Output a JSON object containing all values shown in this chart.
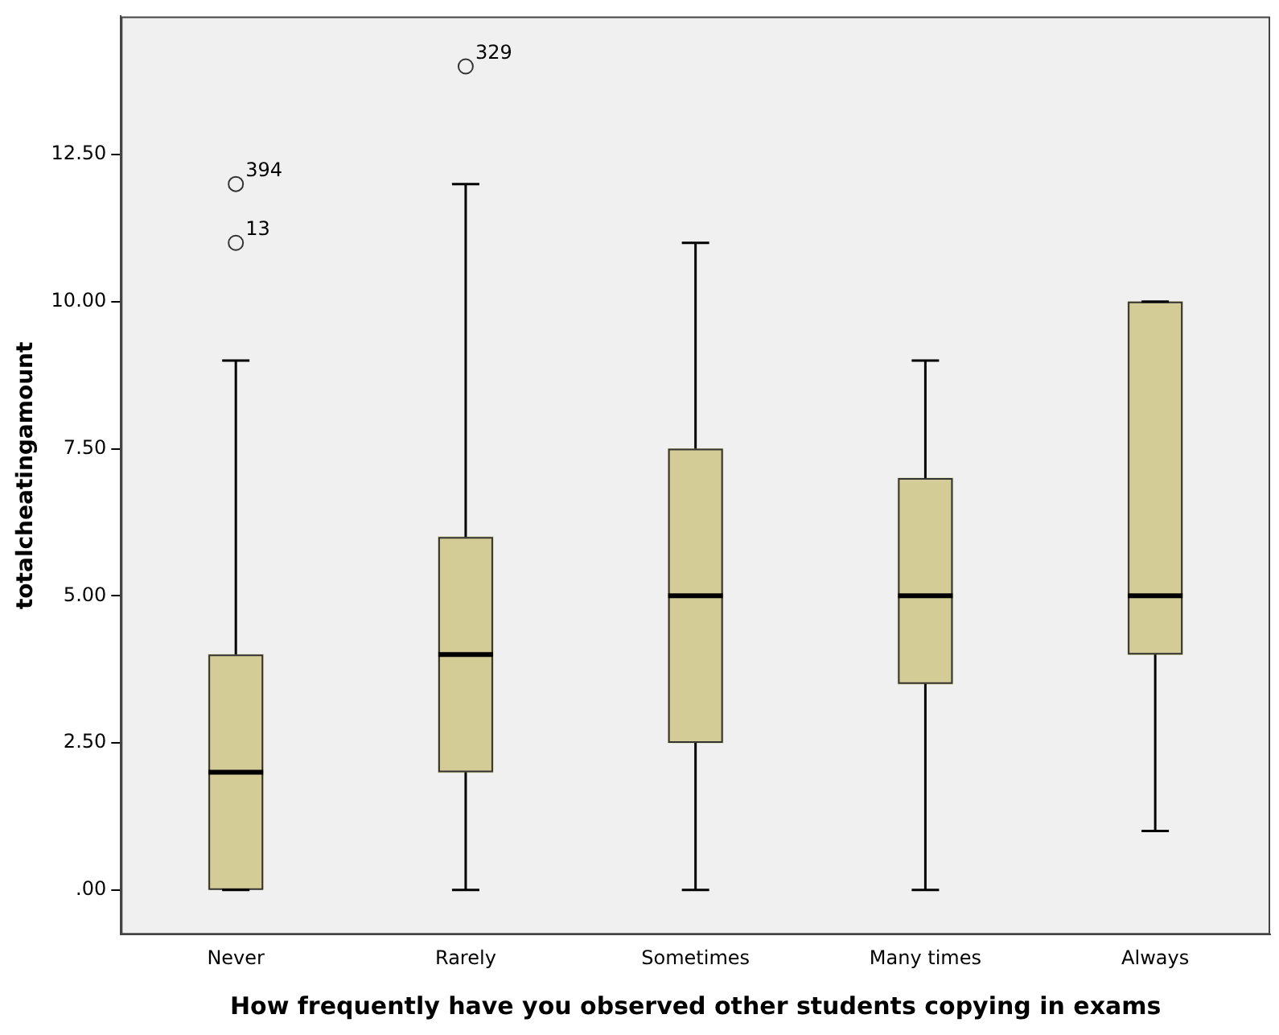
{
  "chart_data": {
    "type": "box",
    "xlabel": "How frequently have you observed other students copying in exams",
    "ylabel": "totalcheatingamount",
    "categories": [
      "Never",
      "Rarely",
      "Sometimes",
      "Many times",
      "Always"
    ],
    "boxes": [
      {
        "low": 0,
        "q1": 0,
        "median": 2,
        "q3": 4,
        "high": 9,
        "outliers": [
          12,
          11
        ]
      },
      {
        "low": 0,
        "q1": 2,
        "median": 4,
        "q3": 6,
        "high": 12,
        "outliers": [
          14
        ]
      },
      {
        "low": 0,
        "q1": 2.5,
        "median": 5,
        "q3": 7.5,
        "high": 11
      },
      {
        "low": 0,
        "q1": 3.5,
        "median": 5,
        "q3": 7,
        "high": 9
      },
      {
        "low": 1,
        "q1": 4,
        "median": 5,
        "q3": 10,
        "high": 10
      }
    ],
    "color": "#d4cc96",
    "ylim": [
      -0.76,
      14.85
    ],
    "yticks": [
      {
        "value": 0,
        "label": ".00"
      },
      {
        "value": 2.5,
        "label": "2.50"
      },
      {
        "value": 5,
        "label": "5.00"
      },
      {
        "value": 7.5,
        "label": "7.50"
      },
      {
        "value": 10,
        "label": "10.00"
      },
      {
        "value": 12.5,
        "label": "12.50"
      }
    ],
    "grid": false,
    "legend": false,
    "marker": "circle",
    "annotations": [
      "394",
      "13",
      "329"
    ]
  }
}
